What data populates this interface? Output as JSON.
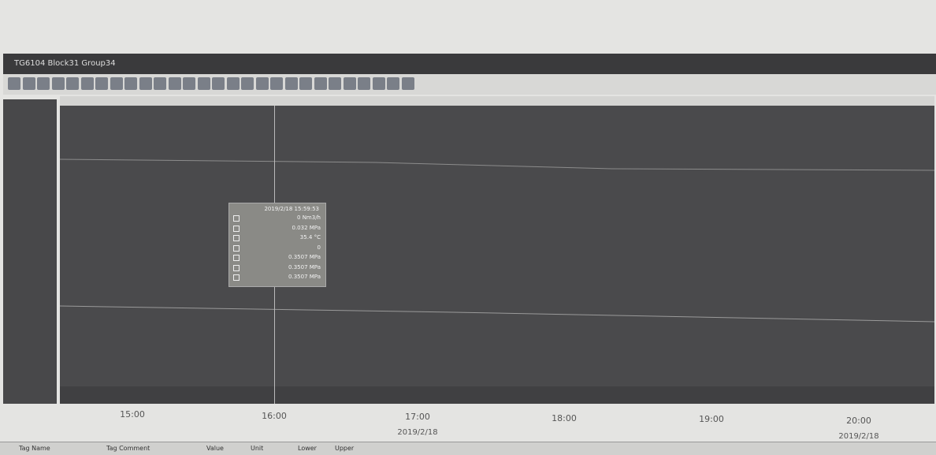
{
  "window": {
    "title": "TG6104 Block31 Group34"
  },
  "tooltip": {
    "time": "2019/2/18 15:59:53",
    "rows": [
      "0 Nm3/h",
      "0.032 MPa",
      "35.4 °C",
      "0",
      "0.3507 MPa",
      "0.3507 MPa",
      "0.3507 MPa"
    ]
  },
  "time_axis": [
    {
      "time": "15:00"
    },
    {
      "time": "16:00"
    },
    {
      "time": "17:00",
      "date": "2019/2/18"
    },
    {
      "time": "18:00"
    },
    {
      "time": "19:00"
    },
    {
      "time": "20:00",
      "date": "2019/2/18"
    }
  ],
  "table_header": [
    "Tag Name",
    "Tag Comment",
    "Value",
    "Unit",
    "Lower",
    "Upper"
  ]
}
